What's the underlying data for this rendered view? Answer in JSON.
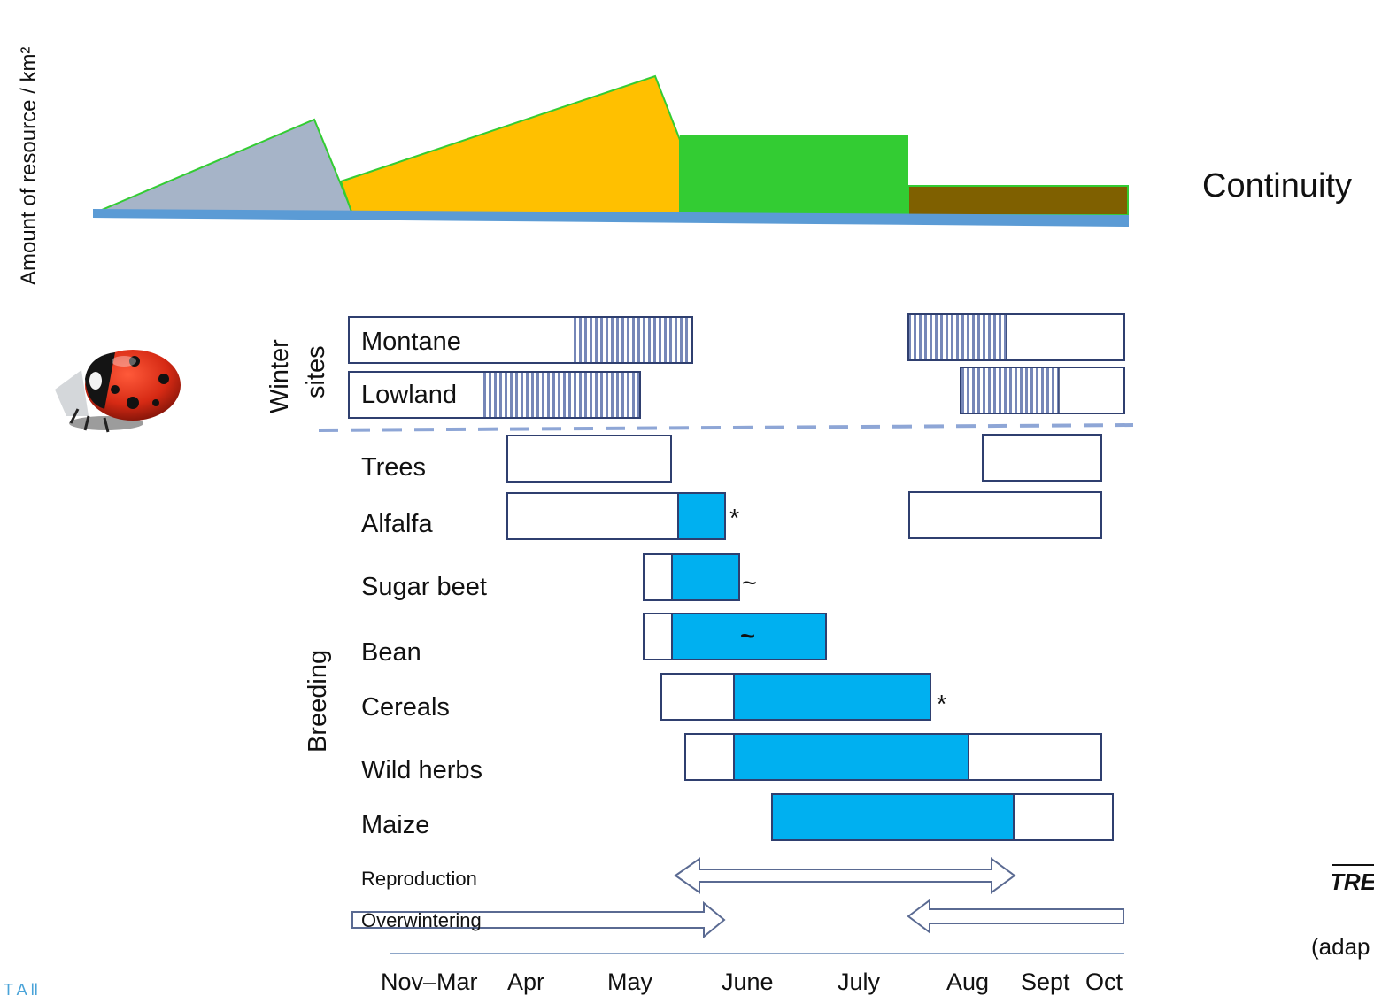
{
  "y_axis_label": "Amount of resource / km²",
  "continuity_label": "Continuity",
  "cut_text_right": "TRE",
  "cut_text_adapted": "(adap",
  "cut_text_bottom_left": "T      A     ll",
  "group_winter": [
    "Winter",
    "sites"
  ],
  "group_breeding": "Breeding",
  "rows": {
    "montane": "Montane",
    "lowland": "Lowland",
    "trees": "Trees",
    "alfalfa": "Alfalfa",
    "sugar_beet": "Sugar beet",
    "bean": "Bean",
    "cereals": "Cereals",
    "wild_herbs": "Wild herbs",
    "maize": "Maize"
  },
  "markers": {
    "alfalfa": "*",
    "sugar_beet": "~",
    "bean": "~",
    "cereals": "*"
  },
  "phases": {
    "reproduction": "Reproduction",
    "overwintering": "Overwintering"
  },
  "months": [
    "Nov–Mar",
    "Apr",
    "May",
    "June",
    "July",
    "Aug",
    "Sept",
    "Oct"
  ],
  "colors": {
    "resource_grey": "#a6b4c8",
    "resource_yellow": "#ffc000",
    "resource_green": "#33cc33",
    "resource_brown": "#7f6000",
    "baseline_blue": "#5b9bd5",
    "breeding_fill": "#00b0f0",
    "outline": "#2f3f6f",
    "hatch": "#6f7fb0"
  },
  "icons": {
    "ladybird": "ladybird-icon"
  }
}
